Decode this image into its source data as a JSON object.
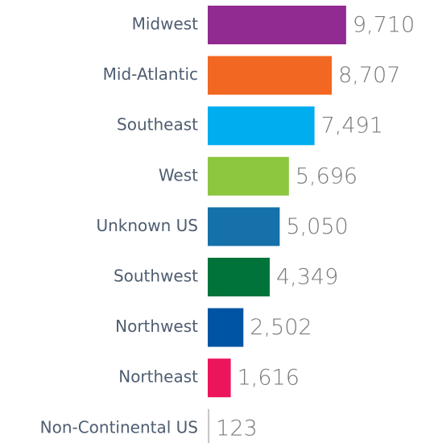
{
  "chart_data": {
    "type": "bar",
    "orientation": "horizontal",
    "categories": [
      "Midwest",
      "Mid-Atlantic",
      "Southeast",
      "West",
      "Unknown US",
      "Southwest",
      "Northwest",
      "Northeast",
      "Non-Continental US"
    ],
    "values": [
      9710,
      8707,
      7491,
      5696,
      5050,
      4349,
      2502,
      1616,
      123
    ],
    "value_labels": [
      "9,710",
      "8,707",
      "7,491",
      "5,696",
      "5,050",
      "4,349",
      "2,502",
      "1,616",
      "123"
    ],
    "colors": [
      "#922b91",
      "#f26722",
      "#00adef",
      "#8dc63f",
      "#1670a9",
      "#00733a",
      "#0054a4",
      "#ec145b",
      "#c8c8c8"
    ],
    "xlim": [
      0,
      10000
    ]
  }
}
